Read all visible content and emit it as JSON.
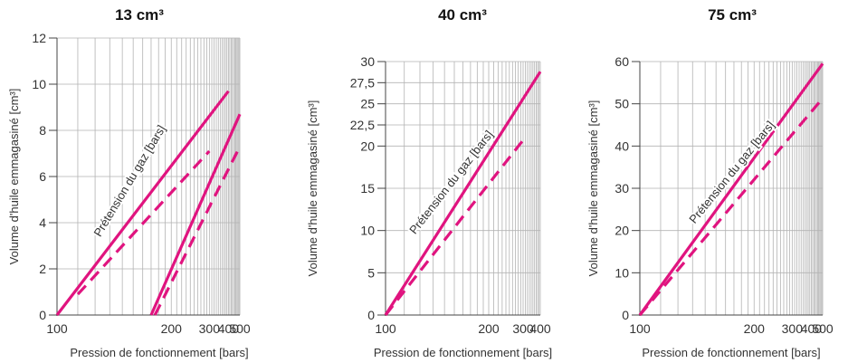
{
  "accent_color": "#e0147f",
  "chart_data": [
    {
      "type": "line",
      "title": "13 cm³",
      "xlabel": "Pression de fonctionnement [bars]",
      "ylabel": "Volume d'huile emmagasiné [cm³]",
      "x_scale": "reciprocal",
      "xlim": [
        100,
        500
      ],
      "ylim": [
        0,
        12
      ],
      "x_ticks": [
        100,
        200,
        300,
        400,
        500
      ],
      "x_tick_labels": [
        "100",
        "200",
        "300",
        "400",
        "500"
      ],
      "y_ticks": [
        0,
        2,
        4,
        6,
        8,
        10,
        12
      ],
      "y_tick_labels": [
        "0",
        "2",
        "4",
        "6",
        "8",
        "10",
        "12"
      ],
      "grid": true,
      "annotation": "Prétension du gaz [bars]",
      "series": [
        {
          "style": "solid",
          "x": [
            100,
            400
          ],
          "y": [
            0,
            9.7
          ]
        },
        {
          "style": "dashed",
          "x": [
            110,
            300
          ],
          "y": [
            0.9,
            7.1
          ]
        },
        {
          "style": "solid",
          "x": [
            170,
            500
          ],
          "y": [
            0,
            8.7
          ]
        },
        {
          "style": "dashed",
          "x": [
            175,
            500
          ],
          "y": [
            0,
            7.3
          ]
        }
      ]
    },
    {
      "type": "line",
      "title": "40 cm³",
      "xlabel": "Pression de fonctionnement [bars]",
      "ylabel": "Volume d'huile emmagasiné [cm³]",
      "x_scale": "reciprocal",
      "xlim": [
        100,
        400
      ],
      "ylim": [
        0,
        30
      ],
      "x_ticks": [
        100,
        200,
        300,
        400
      ],
      "x_tick_labels": [
        "100",
        "200",
        "300",
        "400"
      ],
      "y_ticks": [
        0,
        5,
        10,
        15,
        20,
        22.5,
        25,
        27.5,
        30
      ],
      "y_tick_labels": [
        "0",
        "5",
        "10",
        "15",
        "20",
        "22,5",
        "25",
        "27,5",
        "30"
      ],
      "grid": true,
      "annotation": "Prétension du gaz [bars]",
      "series": [
        {
          "style": "solid",
          "x": [
            100,
            400
          ],
          "y": [
            0,
            28.8
          ]
        },
        {
          "style": "dashed",
          "x": [
            100,
            300
          ],
          "y": [
            0,
            20.7
          ]
        }
      ]
    },
    {
      "type": "line",
      "title": "75 cm³",
      "xlabel": "Pression de fonctionnement [bars]",
      "ylabel": "Volume d'huile emmagasiné [cm³]",
      "x_scale": "reciprocal",
      "xlim": [
        100,
        500
      ],
      "ylim": [
        0,
        60
      ],
      "x_ticks": [
        100,
        200,
        300,
        400,
        500
      ],
      "x_tick_labels": [
        "100",
        "200",
        "300",
        "400",
        "500"
      ],
      "y_ticks": [
        0,
        10,
        20,
        30,
        40,
        50,
        60
      ],
      "y_tick_labels": [
        "0",
        "10",
        "20",
        "30",
        "40",
        "50",
        "60"
      ],
      "grid": true,
      "annotation": "Prétension du gaz [bars]",
      "series": [
        {
          "style": "solid",
          "x": [
            100,
            500
          ],
          "y": [
            0,
            59.5
          ]
        },
        {
          "style": "dashed",
          "x": [
            100,
            500
          ],
          "y": [
            0,
            51.3
          ]
        }
      ]
    }
  ]
}
